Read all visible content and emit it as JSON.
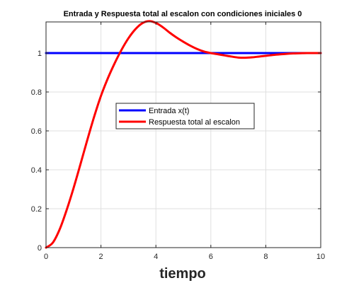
{
  "chart_data": {
    "type": "line",
    "title": "Entrada y Respuesta total al escalon con condiciones iniciales 0",
    "xlabel": "tiempo",
    "ylabel": "",
    "xlim": [
      0,
      10
    ],
    "ylim": [
      0,
      1.16
    ],
    "x_ticks": [
      "0",
      "2",
      "4",
      "6",
      "8",
      "10"
    ],
    "y_ticks": [
      "0",
      "0.2",
      "0.4",
      "0.6",
      "0.8",
      "1"
    ],
    "grid": true,
    "legend_position": "center",
    "series": [
      {
        "name": "Entrada x(t)",
        "color": "#0000ff",
        "x": [
          0,
          10
        ],
        "y": [
          1,
          1
        ]
      },
      {
        "name": "Respuesta total al escalon",
        "color": "#ff0000",
        "x": [
          0,
          0.25,
          0.5,
          0.75,
          1.0,
          1.25,
          1.5,
          1.75,
          2.0,
          2.25,
          2.5,
          2.75,
          3.0,
          3.25,
          3.5,
          3.75,
          4.0,
          4.25,
          4.5,
          4.75,
          5.0,
          5.25,
          5.5,
          5.75,
          6.0,
          6.25,
          6.5,
          6.75,
          7.0,
          7.25,
          7.5,
          7.75,
          8.0,
          8.25,
          8.5,
          8.75,
          9.0,
          9.25,
          9.5,
          9.75,
          10.0
        ],
        "y": [
          0,
          0.026,
          0.095,
          0.193,
          0.305,
          0.427,
          0.552,
          0.672,
          0.78,
          0.87,
          0.948,
          1.017,
          1.076,
          1.122,
          1.153,
          1.164,
          1.155,
          1.133,
          1.105,
          1.08,
          1.058,
          1.038,
          1.021,
          1.008,
          1.0,
          0.994,
          0.988,
          0.982,
          0.977,
          0.976,
          0.978,
          0.982,
          0.986,
          0.99,
          0.993,
          0.996,
          0.998,
          0.999,
          1.0,
          1.0,
          1.0
        ]
      }
    ]
  }
}
